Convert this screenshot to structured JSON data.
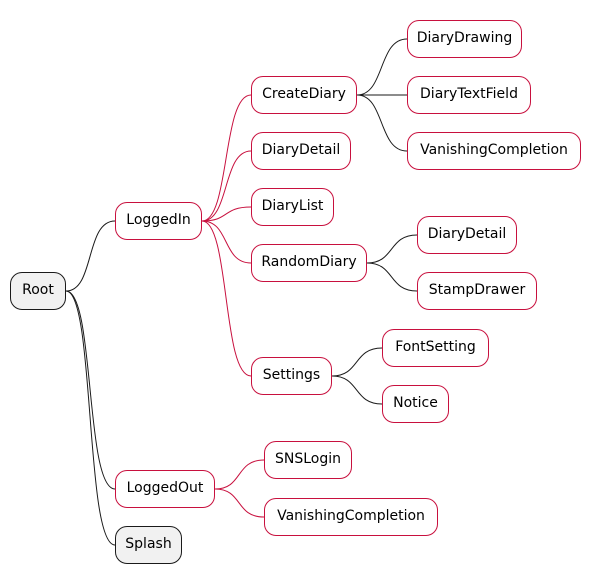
{
  "mindmap": {
    "root": "Root",
    "loggedin": "LoggedIn",
    "createdairy": "CreateDiary",
    "diarydrawing": "DiaryDrawing",
    "diarytextfield": "DiaryTextField",
    "vanishing1": "VanishingCompletion",
    "diarydetail1": "DiaryDetail",
    "diarylist": "DiaryList",
    "randomdiary": "RandomDiary",
    "diarydetail2": "DiaryDetail",
    "stampdrawer": "StampDrawer",
    "settings": "Settings",
    "fontsetting": "FontSetting",
    "notice": "Notice",
    "loggedout": "LoggedOut",
    "snslogin": "SNSLogin",
    "vanishing2": "VanishingCompletion",
    "splash": "Splash"
  },
  "colors": {
    "node_border": "#c8103e",
    "root_border": "#1a1a1a",
    "root_fill": "#f1f1f1",
    "edge_black": "#1a1a1a",
    "edge_red": "#c8103e"
  }
}
